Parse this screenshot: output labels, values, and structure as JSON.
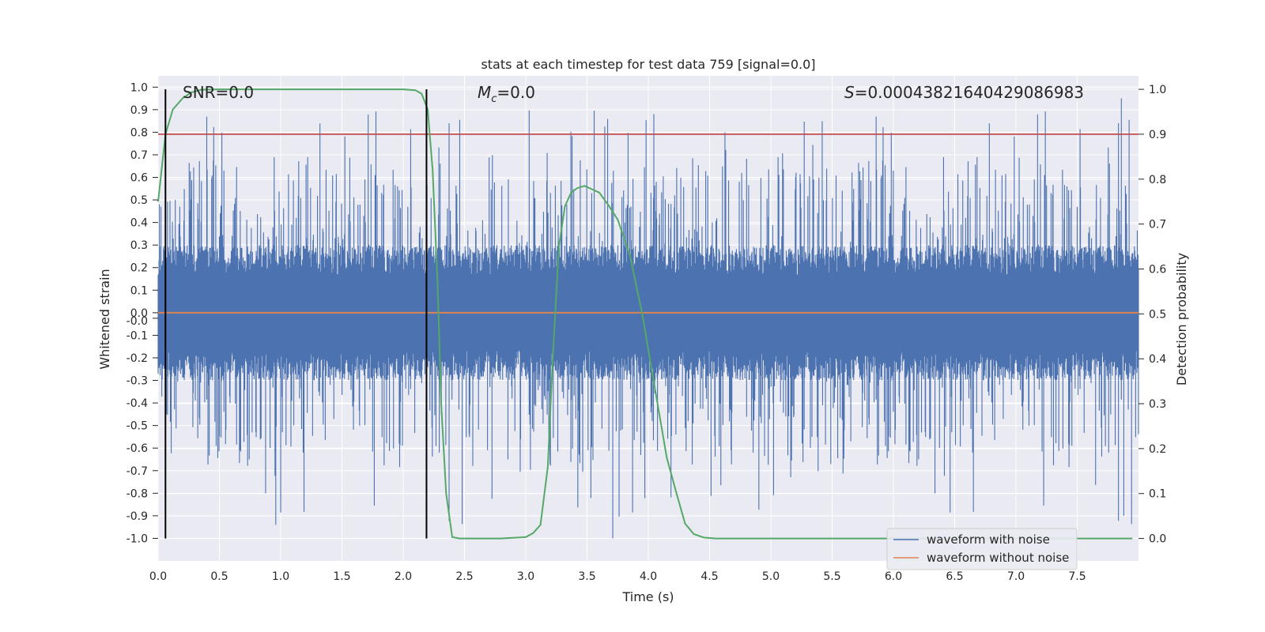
{
  "chart_data": {
    "type": "line",
    "title": "stats at each timestep for test data 759 [signal=0.0]",
    "xlabel": "Time (s)",
    "ylabel": "Whitened strain",
    "y2label": "Detection probability",
    "xlim": [
      0.0,
      8.0
    ],
    "ylim": [
      -1.1,
      1.05
    ],
    "y2lim": [
      -0.05,
      1.03
    ],
    "xticks": [
      "0.0",
      "0.5",
      "1.0",
      "1.5",
      "2.0",
      "2.5",
      "3.0",
      "3.5",
      "4.0",
      "4.5",
      "5.0",
      "5.5",
      "6.0",
      "6.5",
      "7.0",
      "7.5"
    ],
    "yticks": [
      "1.0",
      "0.9",
      "0.8",
      "0.7",
      "0.6",
      "0.5",
      "0.4",
      "0.3",
      "0.2",
      "0.1",
      "0.0",
      "-0.0",
      "-0.1",
      "-0.2",
      "-0.3",
      "-0.4",
      "-0.5",
      "-0.6",
      "-0.7",
      "-0.8",
      "-0.9",
      "-1.0"
    ],
    "y2ticks": [
      "1.0",
      "0.9",
      "0.8",
      "0.7",
      "0.6",
      "0.5",
      "0.4",
      "0.3",
      "0.2",
      "0.1",
      "0.0"
    ],
    "annotations": {
      "snr": "SNR=0.0",
      "mc": "=0.0",
      "mc_symbol": "M",
      "mc_sub": "c",
      "s": "=0.00043821640429086983",
      "s_symbol": "S"
    },
    "threshold": 0.9,
    "vlines": [
      0.06,
      2.19
    ],
    "series": [
      {
        "name": "waveform with noise",
        "color": "#4c72b0",
        "axis": "left",
        "style": "noise",
        "core_amplitude": 0.3,
        "peak_max": 0.95,
        "peak_min": -1.0,
        "duration": 8.0,
        "seed": 759
      },
      {
        "name": "waveform without noise",
        "color": "#dd8452",
        "axis": "left",
        "x": [
          0.0,
          8.0
        ],
        "y": [
          0.0,
          0.0
        ]
      },
      {
        "name": "detection probability",
        "color": "#55a868",
        "axis": "right",
        "x": [
          0.0,
          0.06,
          0.12,
          0.2,
          0.27,
          0.35,
          0.5,
          1.0,
          1.5,
          2.0,
          2.1,
          2.15,
          2.2,
          2.24,
          2.28,
          2.31,
          2.35,
          2.4,
          2.46,
          2.55,
          2.8,
          3.0,
          3.06,
          3.12,
          3.18,
          3.22,
          3.27,
          3.32,
          3.37,
          3.42,
          3.48,
          3.52,
          3.6,
          3.68,
          3.75,
          3.85,
          3.95,
          4.05,
          4.15,
          4.23,
          4.3,
          4.37,
          4.45,
          4.55,
          5.0,
          6.0,
          7.0,
          7.95
        ],
        "y": [
          0.75,
          0.9,
          0.955,
          0.98,
          0.993,
          0.999,
          1.0,
          1.0,
          1.0,
          1.0,
          0.998,
          0.99,
          0.955,
          0.82,
          0.57,
          0.3,
          0.1,
          0.003,
          0.0,
          0.0,
          0.0,
          0.003,
          0.012,
          0.03,
          0.16,
          0.4,
          0.65,
          0.74,
          0.77,
          0.78,
          0.785,
          0.78,
          0.77,
          0.74,
          0.71,
          0.63,
          0.5,
          0.34,
          0.18,
          0.1,
          0.033,
          0.01,
          0.002,
          0.0,
          0.0,
          0.0,
          0.0,
          0.0
        ]
      },
      {
        "name": "threshold",
        "color": "#c44e52",
        "axis": "right",
        "x": [
          0.0,
          8.0
        ],
        "y": [
          0.9,
          0.9
        ]
      }
    ],
    "legend": {
      "position": "lower-right",
      "entries": [
        {
          "label": "waveform with noise",
          "color": "#4c72b0"
        },
        {
          "label": "waveform without noise",
          "color": "#dd8452"
        }
      ]
    }
  }
}
